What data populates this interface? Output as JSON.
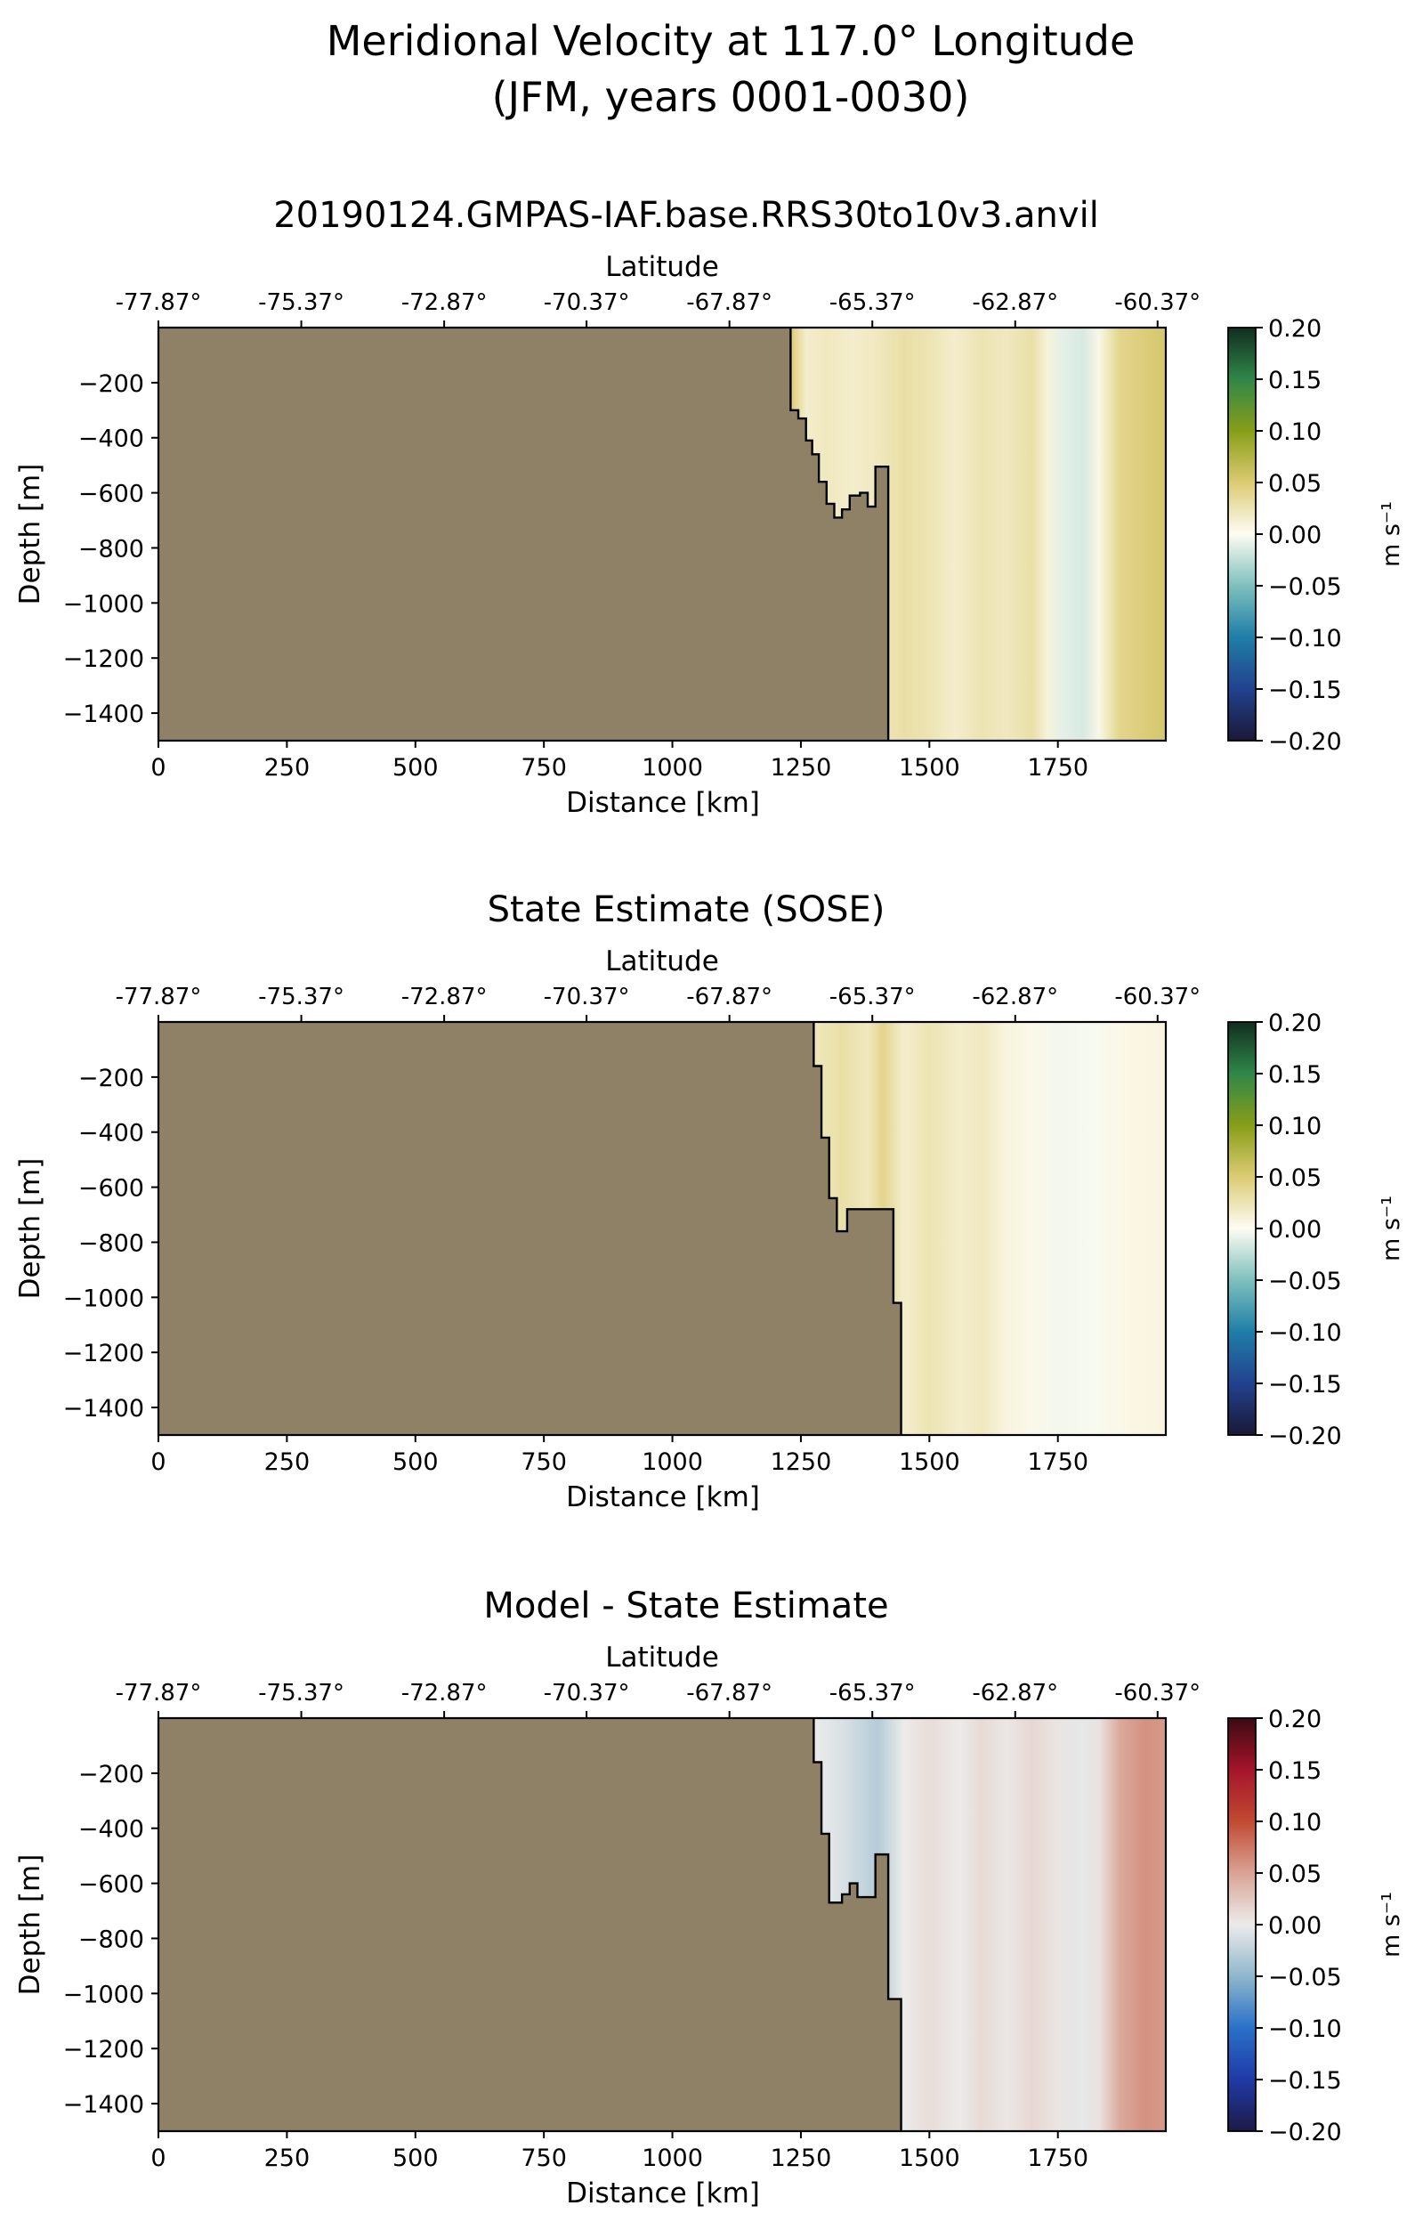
{
  "figure": {
    "title_line1": "Meridional Velocity at 117.0° Longitude",
    "title_line2": "(JFM, years 0001-0030)"
  },
  "chart_data": [
    {
      "type": "heatmap",
      "title": "20190124.GMPAS-IAF.base.RRS30to10v3.anvil",
      "xlabel": "Distance [km]",
      "ylabel": "Depth [m]",
      "top_xlabel": "Latitude",
      "xlim": [
        0,
        1960
      ],
      "ylim": [
        -1500,
        0
      ],
      "xticks": [
        0,
        250,
        500,
        750,
        1000,
        1250,
        1500,
        1750
      ],
      "xtick_labels": [
        "0",
        "250",
        "500",
        "750",
        "1000",
        "1250",
        "1500",
        "1750"
      ],
      "yticks": [
        -200,
        -400,
        -600,
        -800,
        -1000,
        -1200,
        -1400
      ],
      "ytick_labels": [
        "−200",
        "−400",
        "−600",
        "−800",
        "−1000",
        "−1200",
        "−1400"
      ],
      "top_ticks": [
        0,
        278,
        556,
        833,
        1111,
        1389,
        1667,
        1944
      ],
      "top_tick_labels": [
        "-77.87°",
        "-75.37°",
        "-72.87°",
        "-70.37°",
        "-67.87°",
        "-65.37°",
        "-62.87°",
        "-60.37°"
      ],
      "colormap": "green-yellow-blue",
      "colorbar": {
        "label": "m s⁻¹",
        "vmin": -0.2,
        "vmax": 0.2,
        "ticks": [
          "0.20",
          "0.15",
          "0.10",
          "0.05",
          "0.00",
          "−0.05",
          "−0.10",
          "−0.15",
          "−0.20"
        ]
      },
      "land_color": "#8f8166",
      "bathymetry": [
        [
          1230,
          0
        ],
        [
          1230,
          -300
        ],
        [
          1245,
          -300
        ],
        [
          1245,
          -330
        ],
        [
          1260,
          -330
        ],
        [
          1260,
          -410
        ],
        [
          1272,
          -410
        ],
        [
          1272,
          -460
        ],
        [
          1285,
          -460
        ],
        [
          1285,
          -560
        ],
        [
          1300,
          -560
        ],
        [
          1300,
          -640
        ],
        [
          1315,
          -640
        ],
        [
          1315,
          -690
        ],
        [
          1330,
          -690
        ],
        [
          1330,
          -660
        ],
        [
          1345,
          -660
        ],
        [
          1345,
          -610
        ],
        [
          1365,
          -610
        ],
        [
          1365,
          -600
        ],
        [
          1380,
          -600
        ],
        [
          1380,
          -650
        ],
        [
          1395,
          -650
        ],
        [
          1395,
          -505
        ],
        [
          1420,
          -505
        ],
        [
          1420,
          -1500
        ]
      ],
      "columns": [
        {
          "x": 1230,
          "v": 0.05
        },
        {
          "x": 1260,
          "v": 0.015
        },
        {
          "x": 1300,
          "v": 0.02
        },
        {
          "x": 1350,
          "v": 0.015
        },
        {
          "x": 1400,
          "v": 0.02
        },
        {
          "x": 1450,
          "v": 0.03
        },
        {
          "x": 1500,
          "v": 0.025
        },
        {
          "x": 1550,
          "v": 0.015
        },
        {
          "x": 1600,
          "v": 0.025
        },
        {
          "x": 1650,
          "v": 0.02
        },
        {
          "x": 1700,
          "v": 0.03
        },
        {
          "x": 1730,
          "v": 0.01
        },
        {
          "x": 1760,
          "v": -0.01
        },
        {
          "x": 1800,
          "v": -0.015
        },
        {
          "x": 1830,
          "v": 0.005
        },
        {
          "x": 1870,
          "v": 0.04
        },
        {
          "x": 1960,
          "v": 0.055
        }
      ]
    },
    {
      "type": "heatmap",
      "title": "State Estimate (SOSE)",
      "xlabel": "Distance [km]",
      "ylabel": "Depth [m]",
      "top_xlabel": "Latitude",
      "xlim": [
        0,
        1960
      ],
      "ylim": [
        -1500,
        0
      ],
      "xticks": [
        0,
        250,
        500,
        750,
        1000,
        1250,
        1500,
        1750
      ],
      "xtick_labels": [
        "0",
        "250",
        "500",
        "750",
        "1000",
        "1250",
        "1500",
        "1750"
      ],
      "yticks": [
        -200,
        -400,
        -600,
        -800,
        -1000,
        -1200,
        -1400
      ],
      "ytick_labels": [
        "−200",
        "−400",
        "−600",
        "−800",
        "−1000",
        "−1200",
        "−1400"
      ],
      "top_ticks": [
        0,
        278,
        556,
        833,
        1111,
        1389,
        1667,
        1944
      ],
      "top_tick_labels": [
        "-77.87°",
        "-75.37°",
        "-72.87°",
        "-70.37°",
        "-67.87°",
        "-65.37°",
        "-62.87°",
        "-60.37°"
      ],
      "colormap": "green-yellow-blue",
      "colorbar": {
        "label": "m s⁻¹",
        "vmin": -0.2,
        "vmax": 0.2,
        "ticks": [
          "0.20",
          "0.15",
          "0.10",
          "0.05",
          "0.00",
          "−0.05",
          "−0.10",
          "−0.15",
          "−0.20"
        ]
      },
      "land_color": "#8f8166",
      "bathymetry": [
        [
          1275,
          0
        ],
        [
          1275,
          -160
        ],
        [
          1290,
          -160
        ],
        [
          1290,
          -420
        ],
        [
          1305,
          -420
        ],
        [
          1305,
          -640
        ],
        [
          1320,
          -640
        ],
        [
          1320,
          -760
        ],
        [
          1340,
          -760
        ],
        [
          1340,
          -680
        ],
        [
          1430,
          -680
        ],
        [
          1430,
          -1020
        ],
        [
          1445,
          -1020
        ],
        [
          1445,
          -1500
        ]
      ],
      "columns": [
        {
          "x": 1275,
          "v": 0.02
        },
        {
          "x": 1330,
          "v": 0.03
        },
        {
          "x": 1380,
          "v": 0.02
        },
        {
          "x": 1410,
          "v": 0.04
        },
        {
          "x": 1450,
          "v": 0.015
        },
        {
          "x": 1500,
          "v": 0.025
        },
        {
          "x": 1560,
          "v": 0.015
        },
        {
          "x": 1600,
          "v": 0.02
        },
        {
          "x": 1650,
          "v": 0.008
        },
        {
          "x": 1700,
          "v": 0.004
        },
        {
          "x": 1760,
          "v": -0.004
        },
        {
          "x": 1820,
          "v": -0.002
        },
        {
          "x": 1880,
          "v": 0.005
        },
        {
          "x": 1960,
          "v": 0.008
        }
      ]
    },
    {
      "type": "heatmap",
      "title": "Model - State Estimate",
      "xlabel": "Distance [km]",
      "ylabel": "Depth [m]",
      "top_xlabel": "Latitude",
      "xlim": [
        0,
        1960
      ],
      "ylim": [
        -1500,
        0
      ],
      "xticks": [
        0,
        250,
        500,
        750,
        1000,
        1250,
        1500,
        1750
      ],
      "xtick_labels": [
        "0",
        "250",
        "500",
        "750",
        "1000",
        "1250",
        "1500",
        "1750"
      ],
      "yticks": [
        -200,
        -400,
        -600,
        -800,
        -1000,
        -1200,
        -1400
      ],
      "ytick_labels": [
        "−200",
        "−400",
        "−600",
        "−800",
        "−1000",
        "−1200",
        "−1400"
      ],
      "top_ticks": [
        0,
        278,
        556,
        833,
        1111,
        1389,
        1667,
        1944
      ],
      "top_tick_labels": [
        "-77.87°",
        "-75.37°",
        "-72.87°",
        "-70.37°",
        "-67.87°",
        "-65.37°",
        "-62.87°",
        "-60.37°"
      ],
      "colormap": "red-white-blue",
      "colorbar": {
        "label": "m s⁻¹",
        "vmin": -0.2,
        "vmax": 0.2,
        "ticks": [
          "0.20",
          "0.15",
          "0.10",
          "0.05",
          "0.00",
          "−0.05",
          "−0.10",
          "−0.15",
          "−0.20"
        ]
      },
      "land_color": "#8f8166",
      "bathymetry": [
        [
          1275,
          0
        ],
        [
          1275,
          -160
        ],
        [
          1290,
          -160
        ],
        [
          1290,
          -420
        ],
        [
          1305,
          -420
        ],
        [
          1305,
          -670
        ],
        [
          1330,
          -670
        ],
        [
          1330,
          -640
        ],
        [
          1345,
          -640
        ],
        [
          1345,
          -600
        ],
        [
          1360,
          -600
        ],
        [
          1360,
          -650
        ],
        [
          1395,
          -650
        ],
        [
          1395,
          -495
        ],
        [
          1420,
          -495
        ],
        [
          1420,
          -1020
        ],
        [
          1445,
          -1020
        ],
        [
          1445,
          -1500
        ]
      ],
      "columns": [
        {
          "x": 1275,
          "v": 0.0
        },
        {
          "x": 1330,
          "v": -0.01
        },
        {
          "x": 1400,
          "v": -0.03
        },
        {
          "x": 1450,
          "v": 0.0
        },
        {
          "x": 1500,
          "v": 0.01
        },
        {
          "x": 1560,
          "v": 0.0
        },
        {
          "x": 1600,
          "v": 0.012
        },
        {
          "x": 1650,
          "v": 0.003
        },
        {
          "x": 1700,
          "v": 0.014
        },
        {
          "x": 1750,
          "v": 0.004
        },
        {
          "x": 1800,
          "v": -0.004
        },
        {
          "x": 1830,
          "v": 0.006
        },
        {
          "x": 1870,
          "v": 0.045
        },
        {
          "x": 1920,
          "v": 0.06
        },
        {
          "x": 1960,
          "v": 0.055
        }
      ]
    }
  ]
}
